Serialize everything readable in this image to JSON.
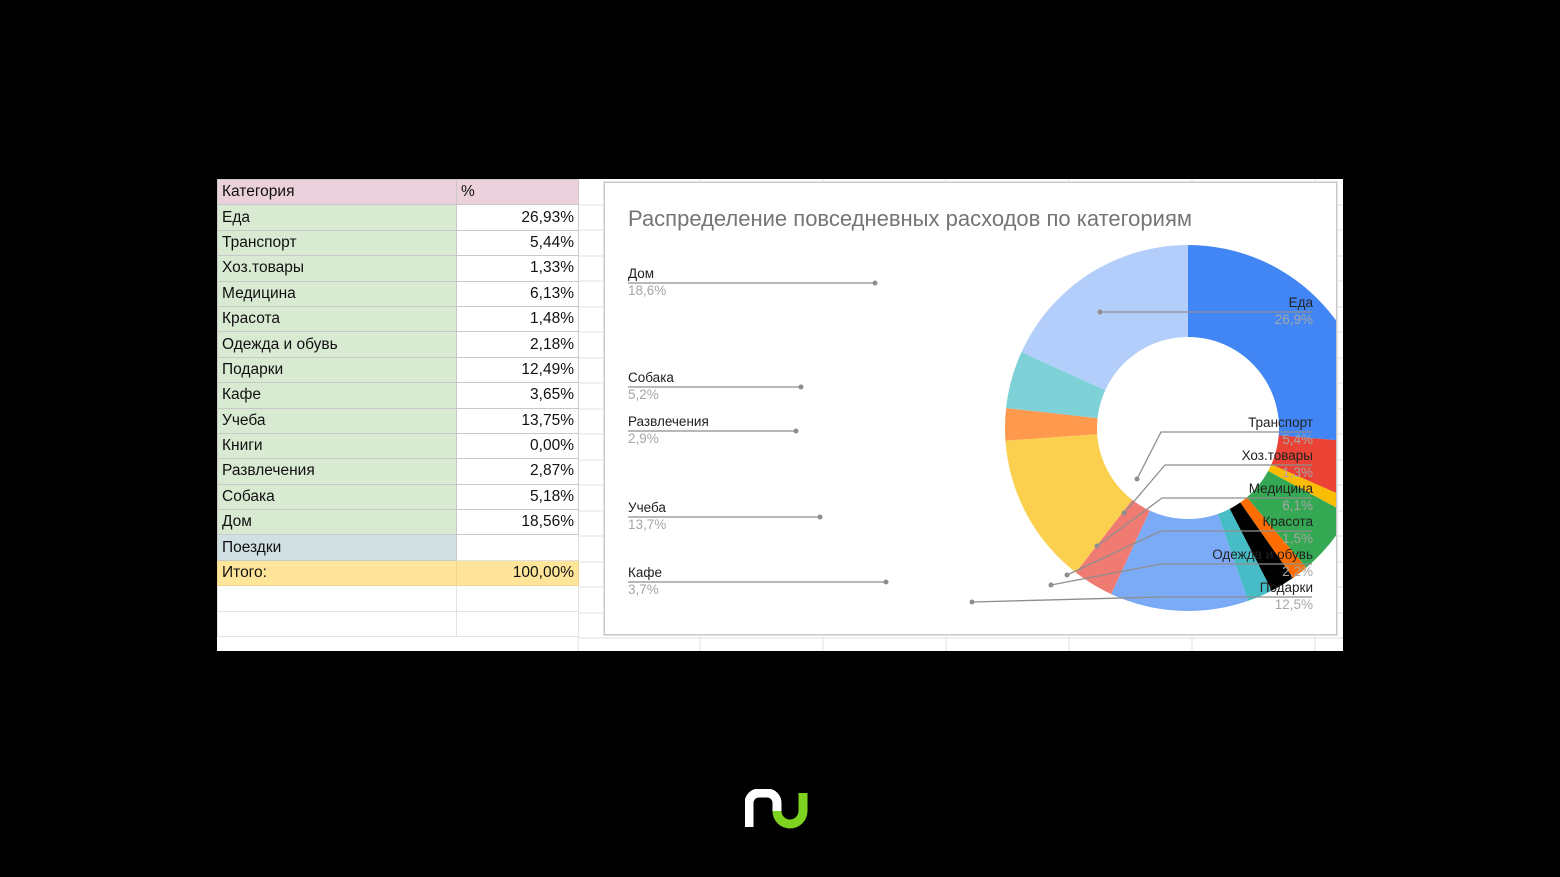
{
  "table": {
    "header": {
      "category": "Категория",
      "value": "%"
    },
    "rows": [
      {
        "category": "Еда",
        "value": "26,93%"
      },
      {
        "category": "Транспорт",
        "value": "5,44%"
      },
      {
        "category": "Хоз.товары",
        "value": "1,33%"
      },
      {
        "category": "Медицина",
        "value": "6,13%"
      },
      {
        "category": "Красота",
        "value": "1,48%"
      },
      {
        "category": "Одежда и обувь",
        "value": "2,18%"
      },
      {
        "category": "Подарки",
        "value": "12,49%"
      },
      {
        "category": "Кафе",
        "value": "3,65%"
      },
      {
        "category": "Учеба",
        "value": "13,75%"
      },
      {
        "category": "Книги",
        "value": "0,00%"
      },
      {
        "category": "Развлечения",
        "value": "2,87%"
      },
      {
        "category": "Собака",
        "value": "5,18%"
      },
      {
        "category": "Дом",
        "value": "18,56%"
      }
    ],
    "trips": {
      "category": "Поездки",
      "value": ""
    },
    "total": {
      "category": "Итого:",
      "value": "100,00%"
    }
  },
  "chart": {
    "title": "Распределение повседневных расходов по категориям",
    "labels": {
      "food": {
        "name": "Еда",
        "pct": "26,9%"
      },
      "transport": {
        "name": "Транспорт",
        "pct": "5,4%"
      },
      "household": {
        "name": "Хоз.товары",
        "pct": "1,3%"
      },
      "medicine": {
        "name": "Медицина",
        "pct": "6,1%"
      },
      "beauty": {
        "name": "Красота",
        "pct": "1,5%"
      },
      "clothes": {
        "name": "Одежда и обувь",
        "pct": "2,2%"
      },
      "gifts": {
        "name": "Подарки",
        "pct": "12,5%"
      },
      "cafe": {
        "name": "Кафе",
        "pct": "3,7%"
      },
      "study": {
        "name": "Учеба",
        "pct": "13,7%"
      },
      "fun": {
        "name": "Развлечения",
        "pct": "2,9%"
      },
      "dog": {
        "name": "Собака",
        "pct": "5,2%"
      },
      "home": {
        "name": "Дом",
        "pct": "18,6%"
      }
    }
  },
  "colors": {
    "food": "#4285f4",
    "transport": "#ea4335",
    "household": "#fbbc04",
    "medicine": "#34a853",
    "beauty": "#ff6d01",
    "unlabeled": "#46bdc6",
    "gifts": "#7baaf7",
    "cafe": "#f07b72",
    "study": "#fcd04f",
    "fun": "#ff994d",
    "dog": "#7ed1d7",
    "home": "#b3cefb"
  },
  "chart_data": {
    "type": "pie",
    "subtype": "donut",
    "title": "Распределение повседневных расходов по категориям",
    "categories": [
      "Еда",
      "Транспорт",
      "Хоз.товары",
      "Медицина",
      "Красота",
      "Одежда и обувь",
      "Подарки",
      "Кафе",
      "Учеба",
      "Развлечения",
      "Собака",
      "Дом"
    ],
    "values": [
      26.9,
      5.4,
      1.3,
      6.1,
      1.5,
      2.2,
      12.5,
      3.7,
      13.7,
      2.9,
      5.2,
      18.6
    ],
    "source_table_values": [
      26.93,
      5.44,
      1.33,
      6.13,
      1.48,
      2.18,
      12.49,
      3.65,
      13.75,
      0.0,
      2.87,
      5.18,
      18.56
    ],
    "source_table_categories": [
      "Еда",
      "Транспорт",
      "Хоз.товары",
      "Медицина",
      "Красота",
      "Одежда и обувь",
      "Подарки",
      "Кафе",
      "Учеба",
      "Книги",
      "Развлечения",
      "Собака",
      "Дом"
    ],
    "unlabeled_slices": [
      {
        "approx_value": 2.3,
        "color": "#46bdc6",
        "position": "between Одежда и обувь and Подарки"
      }
    ],
    "label_format": "name + percent (1 decimal)",
    "legend": "callout labels (none as legend box)"
  },
  "logo": {
    "name": "brand-logo"
  }
}
